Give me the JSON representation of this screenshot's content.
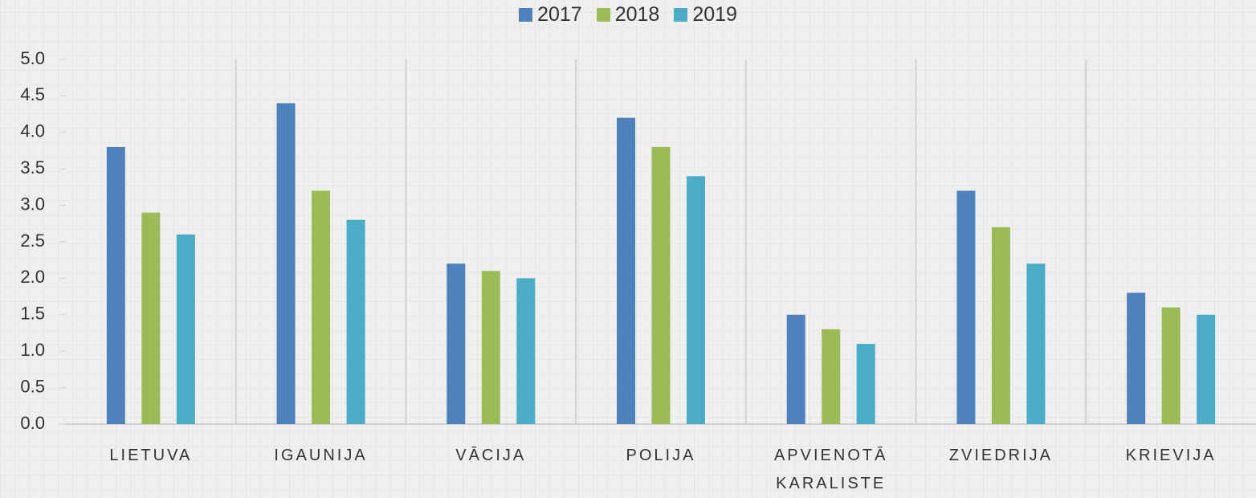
{
  "chart_data": {
    "type": "bar",
    "categories": [
      "LIETUVA",
      "IGAUNIJA",
      "VĀCIJA",
      "POLIJA",
      "APVIENOTĀ KARALISTE",
      "ZVIEDRIJA",
      "KRIEVIJA"
    ],
    "series": [
      {
        "name": "2017",
        "color": "#4f81bd",
        "values": [
          3.8,
          4.4,
          2.2,
          4.2,
          1.5,
          3.2,
          1.8
        ]
      },
      {
        "name": "2018",
        "color": "#9bbb59",
        "values": [
          2.9,
          3.2,
          2.1,
          3.8,
          1.3,
          2.7,
          1.6
        ]
      },
      {
        "name": "2019",
        "color": "#4bacc6",
        "values": [
          2.6,
          2.8,
          2.0,
          3.4,
          1.1,
          2.2,
          1.5
        ]
      }
    ],
    "ylim": [
      0,
      5
    ],
    "yticks": [
      {
        "value": 0,
        "label": "0.0"
      },
      0.5,
      {
        "value": 1,
        "label": "1.0"
      },
      1.5,
      {
        "value": 2,
        "label": "2.0"
      },
      2.5,
      {
        "value": 3,
        "label": "3.0"
      },
      3.5,
      {
        "value": 4,
        "label": "4.0"
      },
      4.5,
      {
        "value": 5,
        "label": "5.0"
      }
    ],
    "grid": false,
    "legend": "top"
  }
}
